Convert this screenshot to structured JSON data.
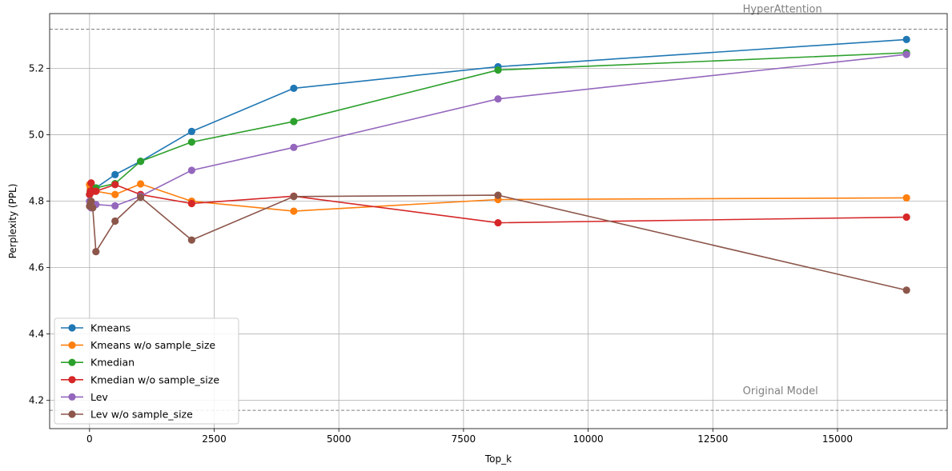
{
  "chart_data": {
    "type": "line",
    "title": "",
    "xlabel": "Top_k",
    "ylabel": "Perplexity (PPL)",
    "xlim": [
      -800,
      17200
    ],
    "ylim": [
      4.115,
      5.365
    ],
    "x_ticks": [
      0,
      2500,
      5000,
      7500,
      10000,
      12500,
      15000
    ],
    "y_ticks": [
      4.2,
      4.4,
      4.6,
      4.8,
      5.0,
      5.2
    ],
    "grid": true,
    "legend_position": "lower-left",
    "x": [
      1,
      16,
      32,
      64,
      128,
      512,
      1024,
      2048,
      4096,
      8192,
      16384
    ],
    "series": [
      {
        "name": "Kmeans",
        "color": "#1f77b4",
        "values": [
          4.82,
          4.84,
          4.83,
          4.83,
          4.84,
          4.88,
          4.92,
          5.01,
          5.14,
          5.205,
          5.287
        ]
      },
      {
        "name": "Kmeans w/o sample_size",
        "color": "#ff7f0e",
        "values": [
          4.85,
          4.84,
          4.83,
          4.83,
          4.83,
          4.82,
          4.852,
          4.8,
          4.77,
          4.805,
          4.81
        ]
      },
      {
        "name": "Kmedian",
        "color": "#2ca02c",
        "values": [
          4.82,
          4.83,
          4.83,
          4.83,
          4.84,
          4.853,
          4.92,
          4.978,
          5.04,
          5.195,
          5.247
        ]
      },
      {
        "name": "Kmedian w/o sample_size",
        "color": "#d62728",
        "values": [
          4.82,
          4.83,
          4.855,
          4.83,
          4.83,
          4.85,
          4.82,
          4.793,
          4.815,
          4.735,
          4.752
        ]
      },
      {
        "name": "Lev",
        "color": "#9467bd",
        "values": [
          4.8,
          4.79,
          4.78,
          4.79,
          4.79,
          4.786,
          4.815,
          4.893,
          4.962,
          5.108,
          5.242
        ]
      },
      {
        "name": "Lev w/o sample_size",
        "color": "#8c564b",
        "values": [
          4.785,
          4.79,
          4.8,
          4.78,
          4.648,
          4.74,
          4.812,
          4.683,
          4.814,
          4.818,
          4.532
        ]
      }
    ],
    "reference_lines": [
      {
        "label": "HyperAttention",
        "value": 5.318,
        "color": "#808080"
      },
      {
        "label": "Original Model",
        "value": 4.17,
        "color": "#808080"
      }
    ]
  }
}
